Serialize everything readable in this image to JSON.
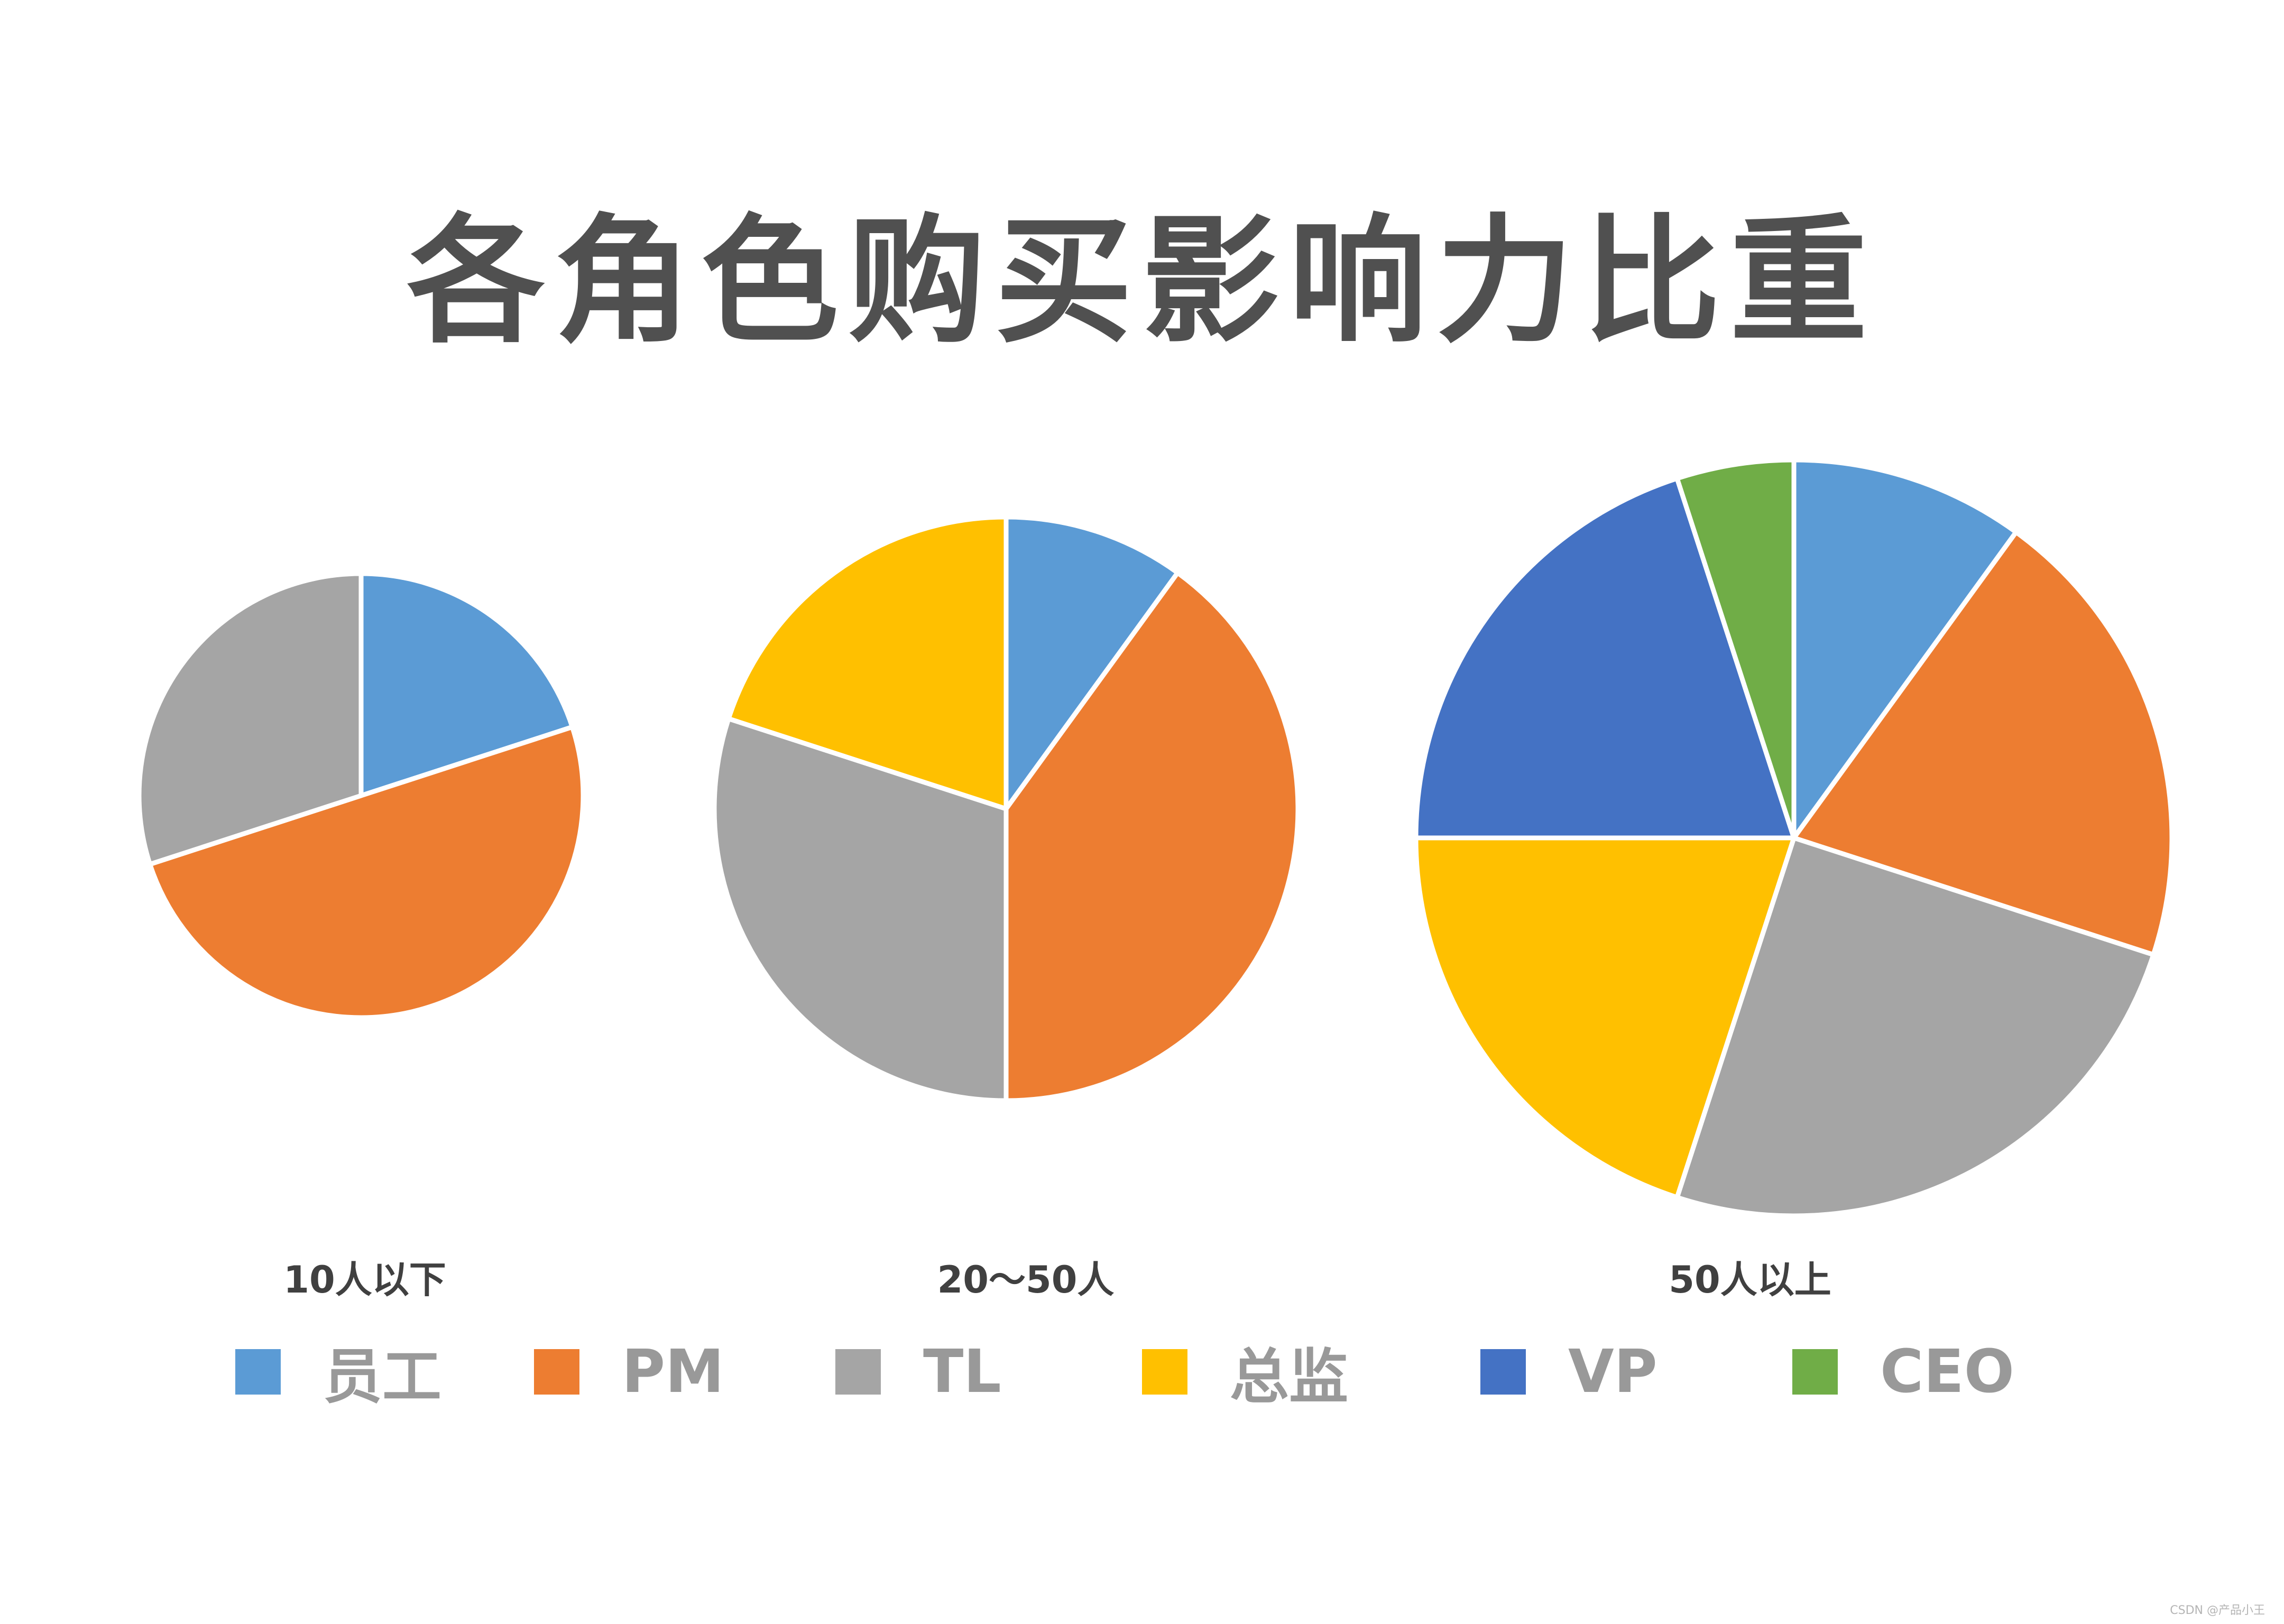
{
  "title": "各角色购买影响力比重",
  "watermark": "CSDN @产品小王",
  "legend": [
    {
      "name": "员工",
      "color": "#5B9BD5"
    },
    {
      "name": "PM",
      "color": "#ED7D31"
    },
    {
      "name": "TL",
      "color": "#A5A5A5"
    },
    {
      "name": "总监",
      "color": "#FFC000"
    },
    {
      "name": "VP",
      "color": "#4472C4"
    },
    {
      "name": "CEO",
      "color": "#70AD47"
    }
  ],
  "chart_data": [
    {
      "type": "pie",
      "title": "10人以下",
      "categories": [
        "员工",
        "PM",
        "TL"
      ],
      "values": [
        20,
        50,
        30
      ]
    },
    {
      "type": "pie",
      "title": "20～50人",
      "categories": [
        "员工",
        "PM",
        "TL",
        "总监"
      ],
      "values": [
        10,
        40,
        30,
        20
      ]
    },
    {
      "type": "pie",
      "title": "50人以上",
      "categories": [
        "员工",
        "PM",
        "TL",
        "总监",
        "VP",
        "CEO"
      ],
      "values": [
        10,
        20,
        25,
        20,
        20,
        5
      ]
    }
  ]
}
